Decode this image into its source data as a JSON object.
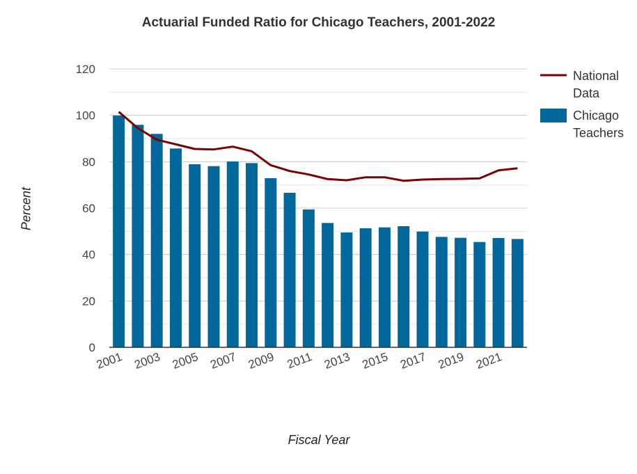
{
  "chart_data": {
    "type": "bar",
    "title": "Actuarial Funded Ratio for Chicago Teachers, 2001-2022",
    "xlabel": "Fiscal Year",
    "ylabel": "Percent",
    "ylim": [
      0,
      120
    ],
    "yticks": [
      0,
      20,
      40,
      60,
      80,
      100,
      120
    ],
    "x": [
      2001,
      2002,
      2003,
      2004,
      2005,
      2006,
      2007,
      2008,
      2009,
      2010,
      2011,
      2012,
      2013,
      2014,
      2015,
      2016,
      2017,
      2018,
      2019,
      2020,
      2021,
      2022
    ],
    "xtick_labels": [
      "2001",
      "2003",
      "2005",
      "2007",
      "2009",
      "2011",
      "2013",
      "2015",
      "2017",
      "2019",
      "2021"
    ],
    "grid": true,
    "legend_position": "right",
    "series": [
      {
        "name": "National Data",
        "type": "line",
        "color": "#7b0000",
        "values": [
          101.5,
          94.5,
          89.5,
          87.5,
          85.5,
          85.3,
          86.5,
          84.5,
          78.5,
          76.0,
          74.5,
          72.5,
          72.0,
          73.3,
          73.3,
          71.8,
          72.3,
          72.5,
          72.6,
          72.8,
          76.3,
          77.2
        ]
      },
      {
        "name": "Chicago Teachers",
        "type": "bar",
        "color": "#02679b",
        "values": [
          99.9,
          95.9,
          92.0,
          85.7,
          78.9,
          78.1,
          80.1,
          79.4,
          72.9,
          66.6,
          59.4,
          53.6,
          49.5,
          51.3,
          51.7,
          52.2,
          49.9,
          47.6,
          47.2,
          45.4,
          47.1,
          46.7
        ]
      }
    ]
  }
}
